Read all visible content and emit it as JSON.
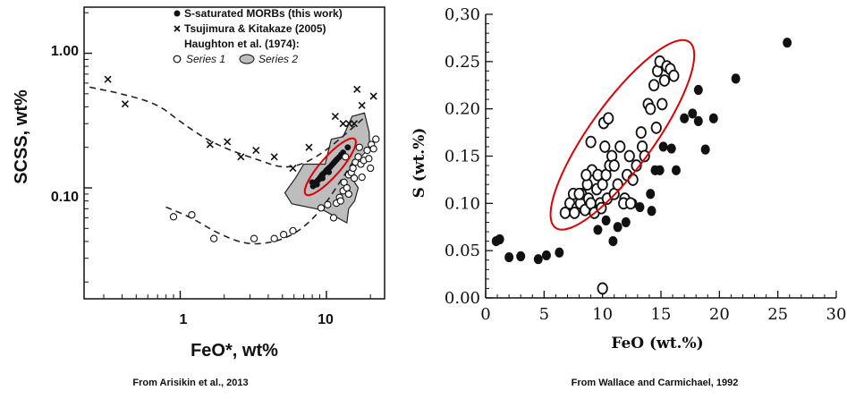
{
  "chart_data": [
    {
      "type": "scatter",
      "xscale": "log",
      "yscale": "log",
      "xlabel": "FeO*, wt%",
      "ylabel": "SCSS, wt%",
      "xlim": [
        0.22,
        25
      ],
      "ylim": [
        0.015,
        2.2
      ],
      "xticklabels": [
        "1",
        "10"
      ],
      "yticklabels": [
        "1.00",
        "0.10"
      ],
      "legend": {
        "position": "top-right",
        "heading": "Haughton et al. (1974):",
        "entries": [
          {
            "marker": "filled-circle",
            "label": "S-saturated MORBs (this work)"
          },
          {
            "marker": "cross",
            "label": "Tsujimura & Kitakaze (2005)"
          }
        ],
        "sub_entries": [
          {
            "marker": "open-circle",
            "label": "Series 1"
          },
          {
            "marker": "gray-region",
            "label": "Series 2"
          }
        ]
      },
      "series": [
        {
          "name": "S-saturated MORBs (this work)",
          "marker": "filled-circle",
          "points": [
            [
              8.1,
              0.103
            ],
            [
              8.3,
              0.106
            ],
            [
              8.5,
              0.11
            ],
            [
              8.7,
              0.113
            ],
            [
              8.9,
              0.116
            ],
            [
              9.1,
              0.12
            ],
            [
              9.3,
              0.124
            ],
            [
              9.5,
              0.127
            ],
            [
              9.8,
              0.131
            ],
            [
              10.0,
              0.135
            ],
            [
              10.3,
              0.139
            ],
            [
              10.6,
              0.143
            ],
            [
              10.9,
              0.148
            ],
            [
              11.2,
              0.153
            ],
            [
              11.5,
              0.158
            ],
            [
              11.8,
              0.163
            ],
            [
              12.2,
              0.169
            ],
            [
              12.6,
              0.176
            ],
            [
              13.0,
              0.183
            ],
            [
              14.0,
              0.2
            ],
            [
              8.6,
              0.106
            ],
            [
              9.4,
              0.118
            ],
            [
              10.4,
              0.131
            ],
            [
              8.0,
              0.11
            ]
          ]
        },
        {
          "name": "Tsujimura & Kitakaze (2005)",
          "marker": "cross",
          "points": [
            [
              0.32,
              0.64
            ],
            [
              0.42,
              0.42
            ],
            [
              1.6,
              0.21
            ],
            [
              2.1,
              0.22
            ],
            [
              2.6,
              0.17
            ],
            [
              3.3,
              0.19
            ],
            [
              4.4,
              0.17
            ],
            [
              5.9,
              0.14
            ],
            [
              7.6,
              0.2
            ],
            [
              11.5,
              0.34
            ],
            [
              13.0,
              0.3
            ],
            [
              14.3,
              0.3
            ],
            [
              15.5,
              0.3
            ],
            [
              16.2,
              0.54
            ],
            [
              17.5,
              0.41
            ],
            [
              21.0,
              0.48
            ]
          ]
        },
        {
          "name": "Series 1",
          "marker": "open-circle",
          "points": [
            [
              0.9,
              0.061
            ],
            [
              1.2,
              0.063
            ],
            [
              1.7,
              0.042
            ],
            [
              3.2,
              0.042
            ],
            [
              4.4,
              0.042
            ],
            [
              5.1,
              0.045
            ],
            [
              5.9,
              0.048
            ],
            [
              9.2,
              0.071
            ],
            [
              10.2,
              0.075
            ],
            [
              11.2,
              0.06
            ],
            [
              11.7,
              0.077
            ],
            [
              12.3,
              0.085
            ],
            [
              13.0,
              0.095
            ],
            [
              13.2,
              0.11
            ],
            [
              13.8,
              0.1
            ],
            [
              14.2,
              0.125
            ],
            [
              14.8,
              0.13
            ],
            [
              15.2,
              0.14
            ],
            [
              15.8,
              0.155
            ],
            [
              16.5,
              0.17
            ],
            [
              17.2,
              0.15
            ],
            [
              18.0,
              0.16
            ],
            [
              19.0,
              0.19
            ],
            [
              19.5,
              0.165
            ],
            [
              20.3,
              0.21
            ],
            [
              21.0,
              0.195
            ],
            [
              14.2,
              0.09
            ],
            [
              12.5,
              0.08
            ],
            [
              17.5,
              0.12
            ],
            [
              20.0,
              0.14
            ],
            [
              13.5,
              0.17
            ],
            [
              16.8,
              0.2
            ],
            [
              21.8,
              0.23
            ],
            [
              15.5,
              0.118
            ]
          ]
        }
      ],
      "regions": [
        {
          "name": "Series 2",
          "fill": "#bdbdbd",
          "points": [
            [
              7.0,
              0.15
            ],
            [
              9.8,
              0.15
            ],
            [
              10.8,
              0.23
            ],
            [
              13.0,
              0.24
            ],
            [
              15.0,
              0.34
            ],
            [
              18.2,
              0.36
            ],
            [
              19.6,
              0.26
            ],
            [
              19.8,
              0.2
            ],
            [
              15.5,
              0.15
            ],
            [
              14.8,
              0.12
            ],
            [
              16.5,
              0.1
            ],
            [
              15.6,
              0.08
            ],
            [
              14.2,
              0.07
            ],
            [
              13.8,
              0.055
            ],
            [
              9.6,
              0.068
            ],
            [
              5.8,
              0.076
            ],
            [
              5.2,
              0.092
            ],
            [
              6.2,
              0.12
            ]
          ]
        }
      ],
      "curves": [
        {
          "style": "dashed",
          "points": [
            [
              0.24,
              0.56
            ],
            [
              0.4,
              0.5
            ],
            [
              0.7,
              0.42
            ],
            [
              1.0,
              0.31
            ],
            [
              1.5,
              0.23
            ],
            [
              2.2,
              0.19
            ],
            [
              3.5,
              0.16
            ],
            [
              5.0,
              0.14
            ],
            [
              7.0,
              0.15
            ],
            [
              10.0,
              0.19
            ],
            [
              14.0,
              0.26
            ],
            [
              18.0,
              0.33
            ]
          ]
        },
        {
          "style": "dashed",
          "points": [
            [
              0.8,
              0.072
            ],
            [
              1.2,
              0.06
            ],
            [
              1.8,
              0.046
            ],
            [
              2.8,
              0.038
            ],
            [
              4.2,
              0.039
            ],
            [
              6.0,
              0.045
            ],
            [
              8.0,
              0.058
            ],
            [
              10.0,
              0.078
            ],
            [
              13.0,
              0.12
            ],
            [
              16.0,
              0.17
            ]
          ]
        }
      ],
      "highlight": {
        "type": "ellipse",
        "color": "#e00000"
      }
    },
    {
      "type": "scatter",
      "xlabel": "FeO (wt.%)",
      "ylabel": "S (wt.%)",
      "xlim": [
        0,
        30
      ],
      "ylim": [
        0,
        0.3
      ],
      "xticklabels": [
        "0",
        "5",
        "10",
        "15",
        "20",
        "25",
        "30"
      ],
      "yticklabels": [
        "0.00",
        "0.05",
        "0.10",
        "0.15",
        "0.20",
        "0.25",
        "0,30"
      ],
      "series": [
        {
          "marker": "filled-circle",
          "points": [
            [
              0.9,
              0.06
            ],
            [
              1.2,
              0.062
            ],
            [
              2.0,
              0.043
            ],
            [
              3.0,
              0.044
            ],
            [
              4.5,
              0.041
            ],
            [
              5.2,
              0.045
            ],
            [
              6.3,
              0.048
            ],
            [
              9.6,
              0.072
            ],
            [
              10.3,
              0.082
            ],
            [
              10.9,
              0.06
            ],
            [
              11.3,
              0.075
            ],
            [
              12.0,
              0.08
            ],
            [
              12.6,
              0.1
            ],
            [
              13.2,
              0.096
            ],
            [
              14.1,
              0.11
            ],
            [
              14.5,
              0.135
            ],
            [
              14.9,
              0.135
            ],
            [
              15.2,
              0.16
            ],
            [
              15.9,
              0.158
            ],
            [
              16.3,
              0.135
            ],
            [
              17.0,
              0.19
            ],
            [
              17.7,
              0.195
            ],
            [
              18.2,
              0.22
            ],
            [
              18.2,
              0.187
            ],
            [
              18.8,
              0.157
            ],
            [
              19.5,
              0.19
            ],
            [
              21.4,
              0.232
            ],
            [
              25.8,
              0.27
            ],
            [
              14.2,
              0.092
            ],
            [
              12.0,
              0.105
            ]
          ]
        },
        {
          "marker": "open-circle",
          "points": [
            [
              10.0,
              0.01
            ],
            [
              6.8,
              0.09
            ],
            [
              7.2,
              0.1
            ],
            [
              7.5,
              0.11
            ],
            [
              7.8,
              0.095
            ],
            [
              8.1,
              0.1
            ],
            [
              8.2,
              0.11
            ],
            [
              8.5,
              0.093
            ],
            [
              8.7,
              0.12
            ],
            [
              8.8,
              0.105
            ],
            [
              9.0,
              0.1
            ],
            [
              9.1,
              0.135
            ],
            [
              9.3,
              0.09
            ],
            [
              9.5,
              0.115
            ],
            [
              9.6,
              0.13
            ],
            [
              9.8,
              0.1
            ],
            [
              10.0,
              0.12
            ],
            [
              10.1,
              0.185
            ],
            [
              10.2,
              0.16
            ],
            [
              10.3,
              0.13
            ],
            [
              10.4,
              0.105
            ],
            [
              10.5,
              0.19
            ],
            [
              10.6,
              0.14
            ],
            [
              10.8,
              0.15
            ],
            [
              11.0,
              0.11
            ],
            [
              11.3,
              0.12
            ],
            [
              11.5,
              0.16
            ],
            [
              11.9,
              0.105
            ],
            [
              12.1,
              0.13
            ],
            [
              12.3,
              0.15
            ],
            [
              12.6,
              0.125
            ],
            [
              12.9,
              0.14
            ],
            [
              13.3,
              0.175
            ],
            [
              13.4,
              0.16
            ],
            [
              13.6,
              0.15
            ],
            [
              13.9,
              0.205
            ],
            [
              14.1,
              0.2
            ],
            [
              14.4,
              0.225
            ],
            [
              14.6,
              0.18
            ],
            [
              14.7,
              0.24
            ],
            [
              14.9,
              0.25
            ],
            [
              15.1,
              0.205
            ],
            [
              15.3,
              0.23
            ],
            [
              15.5,
              0.245
            ],
            [
              15.8,
              0.242
            ],
            [
              16.1,
              0.235
            ],
            [
              8.6,
              0.13
            ],
            [
              9.9,
              0.095
            ],
            [
              11.8,
              0.1
            ],
            [
              7.6,
              0.09
            ],
            [
              9.0,
              0.165
            ],
            [
              11.0,
              0.14
            ],
            [
              12.4,
              0.1
            ],
            [
              8.0,
              0.11
            ]
          ]
        }
      ],
      "highlight": {
        "type": "ellipse",
        "color": "#e00000"
      }
    }
  ],
  "captions": {
    "left": "From Arisikin et al., 2013",
    "right": "From Wallace and Carmichael, 1992"
  }
}
